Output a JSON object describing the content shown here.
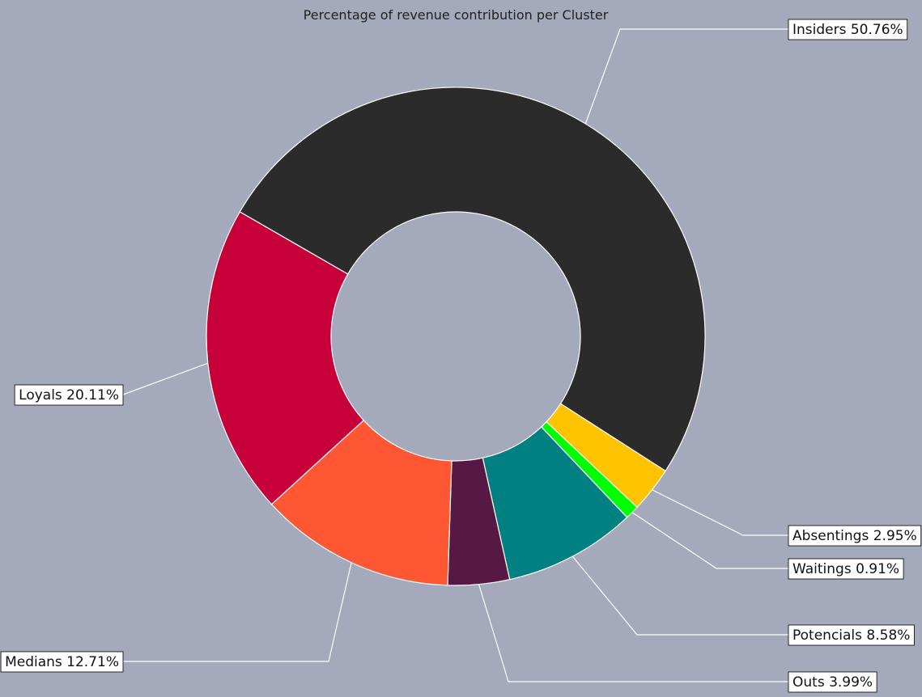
{
  "chart_data": {
    "type": "pie",
    "subtype": "donut",
    "title": "Percentage of revenue contribution per Cluster",
    "slices": [
      {
        "name": "Insiders",
        "value": 50.76,
        "label": "Insiders 50.76%",
        "color": "#2b2b2b"
      },
      {
        "name": "Absentings",
        "value": 2.95,
        "label": "Absentings 2.95%",
        "color": "#ffc300"
      },
      {
        "name": "Waitings",
        "value": 0.91,
        "label": "Waitings 0.91%",
        "color": "#00ff00"
      },
      {
        "name": "Potencials",
        "value": 8.58,
        "label": "Potencials 8.58%",
        "color": "#008080"
      },
      {
        "name": "Outs",
        "value": 3.99,
        "label": "Outs 3.99%",
        "color": "#581845"
      },
      {
        "name": "Medians",
        "value": 12.71,
        "label": "Medians 12.71%",
        "color": "#ff5733"
      },
      {
        "name": "Loyals",
        "value": 20.11,
        "label": "Loyals 20.11%",
        "color": "#c70039"
      }
    ],
    "background_color": "#a4a9bb",
    "edge_color": "#ffffff",
    "legend": "none",
    "grid": false
  }
}
